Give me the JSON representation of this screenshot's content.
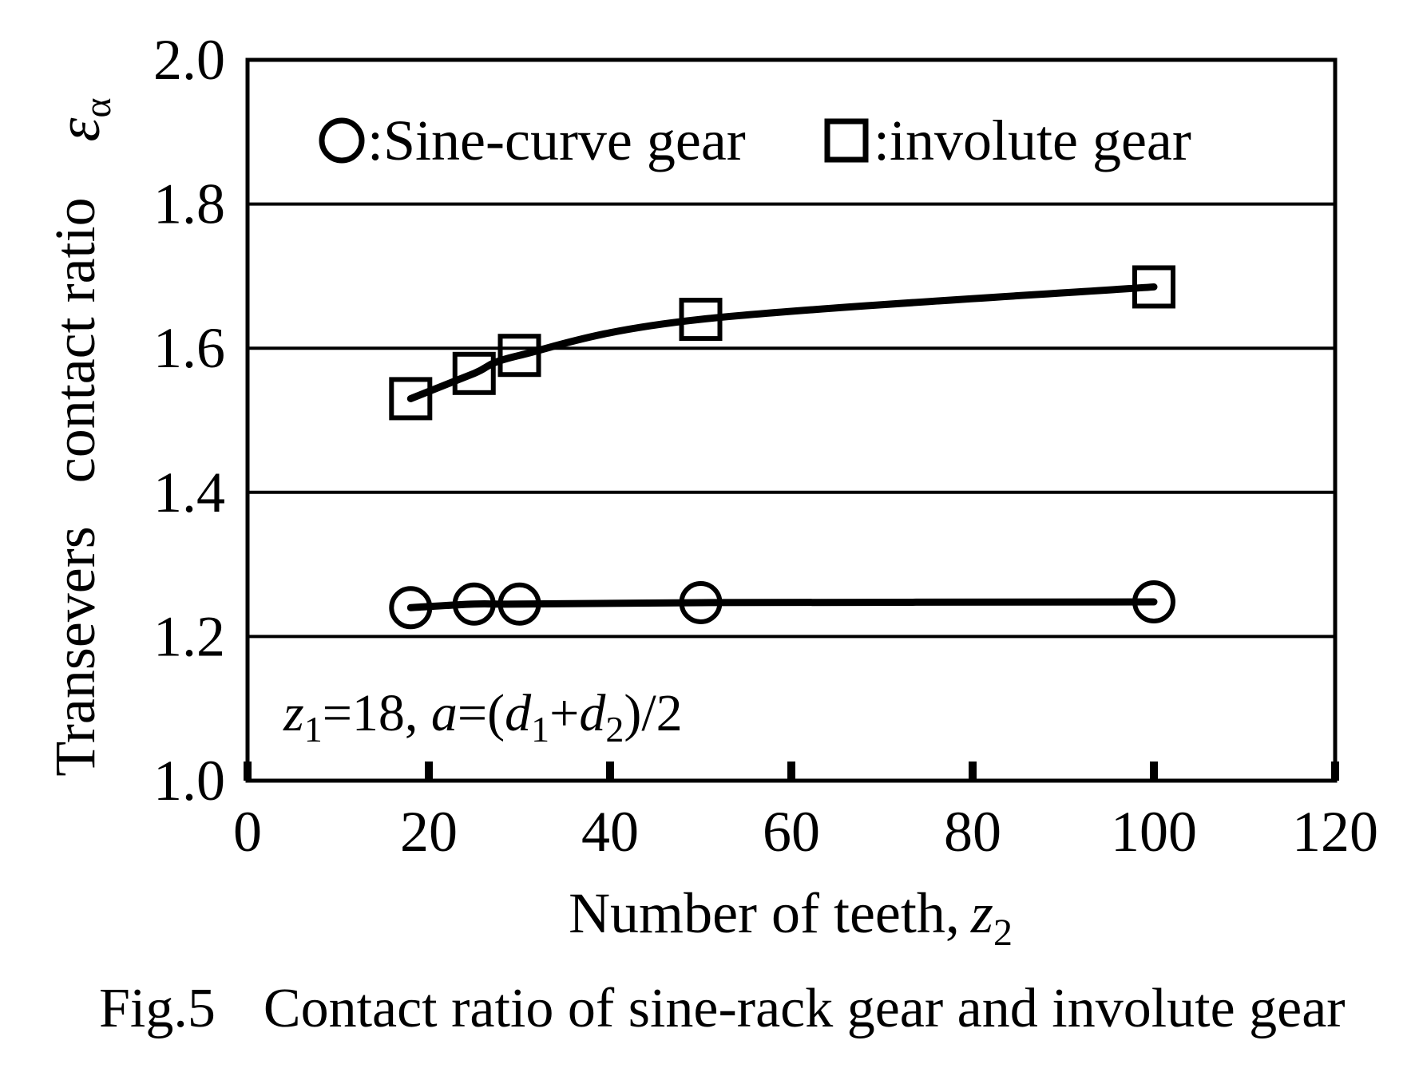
{
  "chart_data": {
    "type": "line",
    "xlabel": "Number of teeth,",
    "xlabel_var": "z",
    "xlabel_sub": "2",
    "ylabel": "Transevers   contact ratio",
    "ylabel_symbol": "ε",
    "ylabel_symbol_sub": "α",
    "xlim": [
      0,
      120
    ],
    "ylim": [
      1.0,
      2.0
    ],
    "xticks": [
      0,
      20,
      40,
      60,
      80,
      100,
      120
    ],
    "yticks": [
      1.0,
      1.2,
      1.4,
      1.6,
      1.8,
      2.0
    ],
    "grid": "horizontal",
    "legend_placement": "top",
    "series": [
      {
        "name": ":Sine-curve gear",
        "marker": "circle",
        "x": [
          18,
          25,
          30,
          50,
          100
        ],
        "y": [
          1.24,
          1.245,
          1.245,
          1.247,
          1.248
        ]
      },
      {
        "name": ":involute gear",
        "marker": "square",
        "x": [
          18,
          25,
          30,
          50,
          100
        ],
        "y": [
          1.53,
          1.565,
          1.59,
          1.64,
          1.685
        ]
      }
    ],
    "annotation": {
      "z": "z",
      "z_sub": "1",
      "eq1": "=18, ",
      "a": "a",
      "eq2": "=(",
      "d1": "d",
      "d1_sub": "1",
      "plus": "+",
      "d2": "d",
      "d2_sub": "2",
      "tail": ")/2"
    }
  },
  "caption": {
    "fig": "Fig.5",
    "text": "Contact ratio of sine-rack gear and involute gear"
  }
}
